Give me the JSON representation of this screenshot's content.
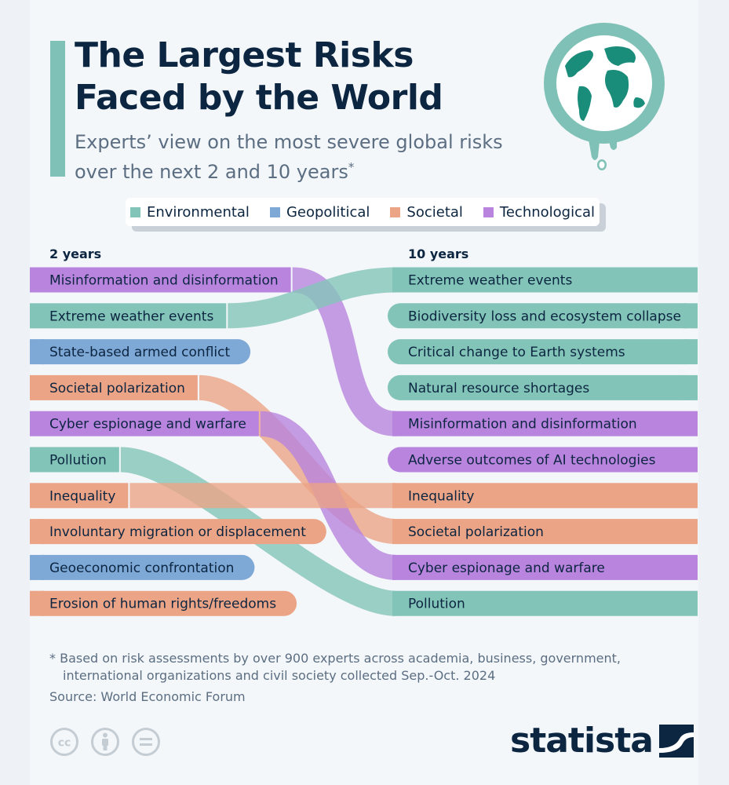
{
  "header": {
    "title_line1": "The Largest Risks",
    "title_line2": "Faced by the World",
    "subtitle_line1": "Experts’ view on the most severe global risks",
    "subtitle_line2": "over the next 2 and 10 years",
    "subtitle_mark": "*"
  },
  "colors": {
    "Environmental": "#83c4b9",
    "Geopolitical": "#7ea8d6",
    "Societal": "#eba486",
    "Technological": "#b884de",
    "title": "#0c2540",
    "accent": "#7fc1b6"
  },
  "legend": [
    {
      "label": "Environmental",
      "color": "#83c4b9"
    },
    {
      "label": "Geopolitical",
      "color": "#7ea8d6"
    },
    {
      "label": "Societal",
      "color": "#eba486"
    },
    {
      "label": "Technological",
      "color": "#b884de"
    }
  ],
  "chart_data": {
    "type": "slope-ranking",
    "left_header": "2 years",
    "right_header": "10 years",
    "left": [
      {
        "label": "Misinformation and disinformation",
        "category": "Technological"
      },
      {
        "label": "Extreme weather events",
        "category": "Environmental"
      },
      {
        "label": "State-based armed conflict",
        "category": "Geopolitical"
      },
      {
        "label": "Societal polarization",
        "category": "Societal"
      },
      {
        "label": "Cyber espionage and warfare",
        "category": "Technological"
      },
      {
        "label": "Pollution",
        "category": "Environmental"
      },
      {
        "label": "Inequality",
        "category": "Societal"
      },
      {
        "label": "Involuntary migration or displacement",
        "category": "Societal"
      },
      {
        "label": "Geoeconomic confrontation",
        "category": "Geopolitical"
      },
      {
        "label": "Erosion of human rights/freedoms",
        "category": "Societal"
      }
    ],
    "right": [
      {
        "label": "Extreme weather events",
        "category": "Environmental"
      },
      {
        "label": "Biodiversity loss and ecosystem collapse",
        "category": "Environmental"
      },
      {
        "label": "Critical change to Earth systems",
        "category": "Environmental"
      },
      {
        "label": "Natural resource shortages",
        "category": "Environmental"
      },
      {
        "label": "Misinformation and disinformation",
        "category": "Technological"
      },
      {
        "label": "Adverse outcomes of AI technologies",
        "category": "Technological"
      },
      {
        "label": "Inequality",
        "category": "Societal"
      },
      {
        "label": "Societal polarization",
        "category": "Societal"
      },
      {
        "label": "Cyber espionage and warfare",
        "category": "Technological"
      },
      {
        "label": "Pollution",
        "category": "Environmental"
      }
    ],
    "links": [
      {
        "label": "Misinformation and disinformation",
        "from_rank": 1,
        "to_rank": 5
      },
      {
        "label": "Extreme weather events",
        "from_rank": 2,
        "to_rank": 1
      },
      {
        "label": "Societal polarization",
        "from_rank": 4,
        "to_rank": 8
      },
      {
        "label": "Cyber espionage and warfare",
        "from_rank": 5,
        "to_rank": 9
      },
      {
        "label": "Pollution",
        "from_rank": 6,
        "to_rank": 10
      },
      {
        "label": "Inequality",
        "from_rank": 7,
        "to_rank": 7
      }
    ]
  },
  "footer": {
    "footnote_line1": "* Based on risk assessments by over 900 experts across academia, business, government,",
    "footnote_line2": "international organizations and civil society collected Sep.-Oct. 2024",
    "source": "Source: World Economic Forum",
    "cc_icons": [
      "cc-icon",
      "attribution-icon",
      "no-derivatives-icon"
    ],
    "brand": "statista"
  }
}
